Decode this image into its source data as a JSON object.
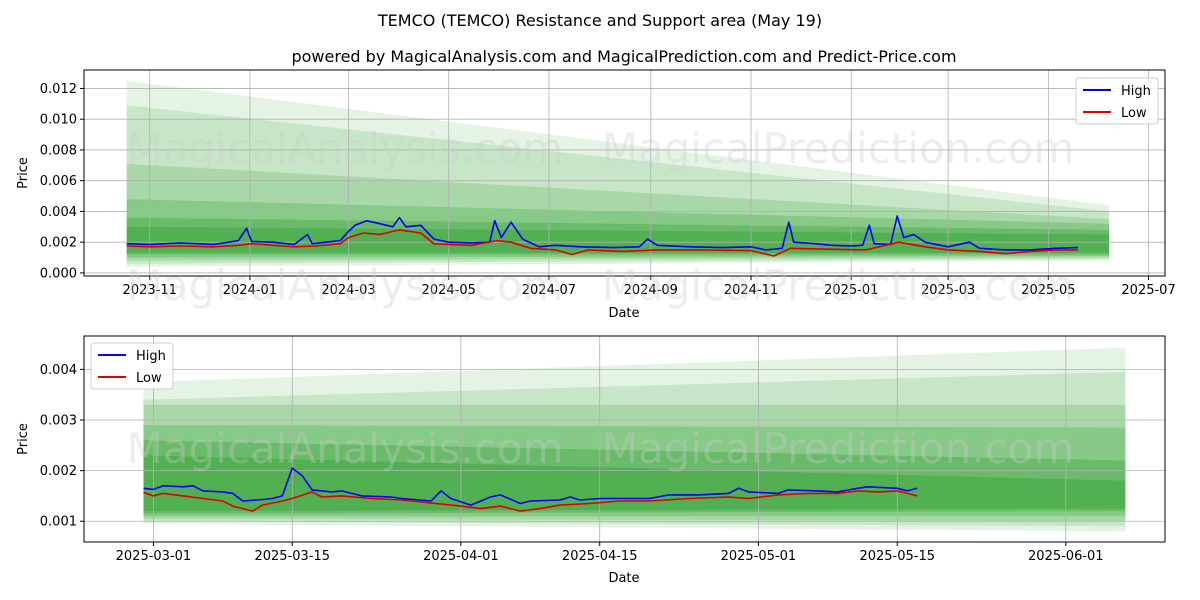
{
  "figure": {
    "title": "TEMCO (TEMCO) Resistance and Support area (May 19)",
    "subtitle": "powered by MagicalAnalysis.com and MagicalPrediction.com and Predict-Price.com",
    "watermarks": [
      "MagicalAnalysis.com",
      "MagicalPrediction.com"
    ]
  },
  "colors": {
    "high": "#0000ff",
    "low": "#e00000",
    "band": "#2ca02c",
    "grid": "#b0b0b0"
  },
  "chart_data": [
    {
      "type": "line",
      "xlabel": "Date",
      "ylabel": "Price",
      "xlim": [
        "2023-09-22",
        "2025-07-11"
      ],
      "ylim": [
        -0.0002,
        0.0132
      ],
      "x_ticks": [
        "2023-11-01",
        "2024-01-01",
        "2024-03-01",
        "2024-05-01",
        "2024-07-01",
        "2024-09-01",
        "2024-11-01",
        "2025-01-01",
        "2025-03-01",
        "2025-05-01",
        "2025-07-01"
      ],
      "x_tick_labels": [
        "2023-11",
        "2024-01",
        "2024-03",
        "2024-05",
        "2024-07",
        "2024-09",
        "2024-11",
        "2025-01",
        "2025-03",
        "2025-05",
        "2025-07"
      ],
      "y_ticks": [
        0.0,
        0.002,
        0.004,
        0.006,
        0.008,
        0.01,
        0.012
      ],
      "y_tick_labels": [
        "0.000",
        "0.002",
        "0.004",
        "0.006",
        "0.008",
        "0.010",
        "0.012"
      ],
      "grid": true,
      "legend": "top-right",
      "bands": {
        "x": [
          "2023-10-18",
          "2025-06-07"
        ],
        "layers": [
          {
            "start": [
              0.0004,
              0.0125
            ],
            "end": [
              0.0008,
              0.0044
            ],
            "opacity": 0.12
          },
          {
            "start": [
              0.0006,
              0.0109
            ],
            "end": [
              0.0009,
              0.004
            ],
            "opacity": 0.16
          },
          {
            "start": [
              0.0008,
              0.0071
            ],
            "end": [
              0.001,
              0.0035
            ],
            "opacity": 0.2
          },
          {
            "start": [
              0.001,
              0.0048
            ],
            "end": [
              0.0011,
              0.0032
            ],
            "opacity": 0.26
          },
          {
            "start": [
              0.0012,
              0.0036
            ],
            "end": [
              0.0012,
              0.0028
            ],
            "opacity": 0.32
          },
          {
            "start": [
              0.0013,
              0.003
            ],
            "end": [
              0.0013,
              0.0025
            ],
            "opacity": 0.4
          }
        ]
      },
      "series": [
        {
          "name": "High",
          "color": "#0000ff",
          "points": [
            [
              "2023-10-18",
              0.0019
            ],
            [
              "2023-11-01",
              0.00185
            ],
            [
              "2023-11-20",
              0.00195
            ],
            [
              "2023-12-10",
              0.00185
            ],
            [
              "2023-12-25",
              0.0021
            ],
            [
              "2023-12-30",
              0.0029
            ],
            [
              "2024-01-02",
              0.00205
            ],
            [
              "2024-01-15",
              0.002
            ],
            [
              "2024-01-28",
              0.00185
            ],
            [
              "2024-02-05",
              0.0025
            ],
            [
              "2024-02-08",
              0.0019
            ],
            [
              "2024-02-25",
              0.0021
            ],
            [
              "2024-03-01",
              0.0027
            ],
            [
              "2024-03-05",
              0.0031
            ],
            [
              "2024-03-12",
              0.0034
            ],
            [
              "2024-03-20",
              0.0032
            ],
            [
              "2024-03-28",
              0.003
            ],
            [
              "2024-04-01",
              0.0036
            ],
            [
              "2024-04-05",
              0.003
            ],
            [
              "2024-04-14",
              0.0031
            ],
            [
              "2024-04-22",
              0.0022
            ],
            [
              "2024-05-01",
              0.002
            ],
            [
              "2024-05-15",
              0.00195
            ],
            [
              "2024-05-26",
              0.002
            ],
            [
              "2024-05-29",
              0.0034
            ],
            [
              "2024-06-02",
              0.0023
            ],
            [
              "2024-06-08",
              0.0033
            ],
            [
              "2024-06-15",
              0.0022
            ],
            [
              "2024-06-25",
              0.0017
            ],
            [
              "2024-07-05",
              0.0018
            ],
            [
              "2024-07-20",
              0.0017
            ],
            [
              "2024-08-10",
              0.00165
            ],
            [
              "2024-08-25",
              0.0017
            ],
            [
              "2024-08-30",
              0.0022
            ],
            [
              "2024-09-05",
              0.0018
            ],
            [
              "2024-09-25",
              0.0017
            ],
            [
              "2024-10-15",
              0.00165
            ],
            [
              "2024-11-01",
              0.0017
            ],
            [
              "2024-11-10",
              0.0015
            ],
            [
              "2024-11-20",
              0.0016
            ],
            [
              "2024-11-24",
              0.0033
            ],
            [
              "2024-11-27",
              0.002
            ],
            [
              "2024-12-10",
              0.0019
            ],
            [
              "2024-12-20",
              0.0018
            ],
            [
              "2025-01-01",
              0.00175
            ],
            [
              "2025-01-08",
              0.0018
            ],
            [
              "2025-01-12",
              0.0031
            ],
            [
              "2025-01-15",
              0.0019
            ],
            [
              "2025-01-25",
              0.00185
            ],
            [
              "2025-01-29",
              0.0037
            ],
            [
              "2025-02-02",
              0.0023
            ],
            [
              "2025-02-08",
              0.0025
            ],
            [
              "2025-02-15",
              0.002
            ],
            [
              "2025-03-01",
              0.0017
            ],
            [
              "2025-03-14",
              0.002
            ],
            [
              "2025-03-20",
              0.0016
            ],
            [
              "2025-04-05",
              0.0015
            ],
            [
              "2025-04-20",
              0.0015
            ],
            [
              "2025-05-05",
              0.0016
            ],
            [
              "2025-05-19",
              0.00165
            ]
          ]
        },
        {
          "name": "Low",
          "color": "#e00000",
          "points": [
            [
              "2023-10-18",
              0.00175
            ],
            [
              "2023-11-01",
              0.0017
            ],
            [
              "2023-11-20",
              0.00175
            ],
            [
              "2023-12-10",
              0.0017
            ],
            [
              "2023-12-25",
              0.0018
            ],
            [
              "2024-01-02",
              0.0019
            ],
            [
              "2024-01-15",
              0.0018
            ],
            [
              "2024-01-28",
              0.0017
            ],
            [
              "2024-02-10",
              0.00175
            ],
            [
              "2024-02-25",
              0.0019
            ],
            [
              "2024-03-01",
              0.0023
            ],
            [
              "2024-03-10",
              0.0026
            ],
            [
              "2024-03-20",
              0.0025
            ],
            [
              "2024-04-01",
              0.0028
            ],
            [
              "2024-04-14",
              0.0026
            ],
            [
              "2024-04-22",
              0.0019
            ],
            [
              "2024-05-01",
              0.00185
            ],
            [
              "2024-05-15",
              0.0018
            ],
            [
              "2024-05-30",
              0.0021
            ],
            [
              "2024-06-08",
              0.002
            ],
            [
              "2024-06-20",
              0.0016
            ],
            [
              "2024-07-05",
              0.0015
            ],
            [
              "2024-07-15",
              0.0012
            ],
            [
              "2024-07-25",
              0.0015
            ],
            [
              "2024-08-15",
              0.0014
            ],
            [
              "2024-09-05",
              0.0015
            ],
            [
              "2024-10-01",
              0.0015
            ],
            [
              "2024-11-01",
              0.00145
            ],
            [
              "2024-11-15",
              0.0011
            ],
            [
              "2024-11-25",
              0.0016
            ],
            [
              "2024-12-15",
              0.00155
            ],
            [
              "2025-01-10",
              0.0015
            ],
            [
              "2025-01-30",
              0.002
            ],
            [
              "2025-02-15",
              0.0017
            ],
            [
              "2025-03-01",
              0.0015
            ],
            [
              "2025-03-20",
              0.0014
            ],
            [
              "2025-04-05",
              0.00125
            ],
            [
              "2025-04-20",
              0.0014
            ],
            [
              "2025-05-05",
              0.0015
            ],
            [
              "2025-05-19",
              0.0015
            ]
          ]
        }
      ]
    },
    {
      "type": "line",
      "xlabel": "Date",
      "ylabel": "Price",
      "xlim": [
        "2025-02-22",
        "2025-06-11"
      ],
      "ylim": [
        0.00059,
        0.00466
      ],
      "x_ticks": [
        "2025-03-01",
        "2025-03-15",
        "2025-04-01",
        "2025-04-15",
        "2025-05-01",
        "2025-05-15",
        "2025-06-01"
      ],
      "x_tick_labels": [
        "2025-03-01",
        "2025-03-15",
        "2025-04-01",
        "2025-04-15",
        "2025-05-01",
        "2025-05-15",
        "2025-06-01"
      ],
      "y_ticks": [
        0.001,
        0.002,
        0.003,
        0.004
      ],
      "y_tick_labels": [
        "0.001",
        "0.002",
        "0.003",
        "0.004"
      ],
      "grid": true,
      "legend": "top-left",
      "bands": {
        "x": [
          "2025-02-28",
          "2025-06-07"
        ],
        "layers": [
          {
            "start": [
              0.00095,
              0.00375
            ],
            "end": [
              0.0008,
              0.00443
            ],
            "opacity": 0.12
          },
          {
            "start": [
              0.001,
              0.0034
            ],
            "end": [
              0.0009,
              0.00395
            ],
            "opacity": 0.16
          },
          {
            "start": [
              0.00105,
              0.0033
            ],
            "end": [
              0.001,
              0.0033
            ],
            "opacity": 0.2
          },
          {
            "start": [
              0.0011,
              0.0029
            ],
            "end": [
              0.0011,
              0.00285
            ],
            "opacity": 0.26
          },
          {
            "start": [
              0.00115,
              0.0026
            ],
            "end": [
              0.0012,
              0.0022
            ],
            "opacity": 0.32
          },
          {
            "start": [
              0.0012,
              0.0023
            ],
            "end": [
              0.00125,
              0.0018
            ],
            "opacity": 0.4
          }
        ]
      },
      "series": [
        {
          "name": "High",
          "color": "#0000ff",
          "points": [
            [
              "2025-02-28",
              0.00165
            ],
            [
              "2025-03-01",
              0.00163
            ],
            [
              "2025-03-02",
              0.0017
            ],
            [
              "2025-03-04",
              0.00168
            ],
            [
              "2025-03-05",
              0.0017
            ],
            [
              "2025-03-06",
              0.0016
            ],
            [
              "2025-03-08",
              0.00158
            ],
            [
              "2025-03-09",
              0.00155
            ],
            [
              "2025-03-10",
              0.0014
            ],
            [
              "2025-03-12",
              0.00143
            ],
            [
              "2025-03-13",
              0.00145
            ],
            [
              "2025-03-14",
              0.0015
            ],
            [
              "2025-03-15",
              0.00205
            ],
            [
              "2025-03-16",
              0.0019
            ],
            [
              "2025-03-17",
              0.00162
            ],
            [
              "2025-03-19",
              0.00158
            ],
            [
              "2025-03-20",
              0.0016
            ],
            [
              "2025-03-22",
              0.0015
            ],
            [
              "2025-03-25",
              0.00148
            ],
            [
              "2025-03-26",
              0.00145
            ],
            [
              "2025-03-29",
              0.0014
            ],
            [
              "2025-03-30",
              0.0016
            ],
            [
              "2025-03-31",
              0.00145
            ],
            [
              "2025-04-02",
              0.00132
            ],
            [
              "2025-04-04",
              0.00148
            ],
            [
              "2025-04-05",
              0.00152
            ],
            [
              "2025-04-07",
              0.00135
            ],
            [
              "2025-04-08",
              0.0014
            ],
            [
              "2025-04-11",
              0.00142
            ],
            [
              "2025-04-12",
              0.00148
            ],
            [
              "2025-04-13",
              0.00142
            ],
            [
              "2025-04-15",
              0.00145
            ],
            [
              "2025-04-18",
              0.00145
            ],
            [
              "2025-04-20",
              0.00145
            ],
            [
              "2025-04-22",
              0.00152
            ],
            [
              "2025-04-25",
              0.00152
            ],
            [
              "2025-04-28",
              0.00155
            ],
            [
              "2025-04-29",
              0.00165
            ],
            [
              "2025-04-30",
              0.00158
            ],
            [
              "2025-05-03",
              0.00155
            ],
            [
              "2025-05-04",
              0.00162
            ],
            [
              "2025-05-07",
              0.0016
            ],
            [
              "2025-05-09",
              0.00158
            ],
            [
              "2025-05-11",
              0.00165
            ],
            [
              "2025-05-12",
              0.00168
            ],
            [
              "2025-05-15",
              0.00165
            ],
            [
              "2025-05-16",
              0.0016
            ],
            [
              "2025-05-17",
              0.00165
            ]
          ]
        },
        {
          "name": "Low",
          "color": "#e00000",
          "points": [
            [
              "2025-02-28",
              0.00157
            ],
            [
              "2025-03-01",
              0.0015
            ],
            [
              "2025-03-02",
              0.00155
            ],
            [
              "2025-03-04",
              0.0015
            ],
            [
              "2025-03-06",
              0.00145
            ],
            [
              "2025-03-08",
              0.0014
            ],
            [
              "2025-03-09",
              0.0013
            ],
            [
              "2025-03-11",
              0.0012
            ],
            [
              "2025-03-12",
              0.00132
            ],
            [
              "2025-03-14",
              0.0014
            ],
            [
              "2025-03-15",
              0.00145
            ],
            [
              "2025-03-17",
              0.00158
            ],
            [
              "2025-03-18",
              0.00148
            ],
            [
              "2025-03-20",
              0.0015
            ],
            [
              "2025-03-23",
              0.00145
            ],
            [
              "2025-03-26",
              0.00142
            ],
            [
              "2025-03-28",
              0.00138
            ],
            [
              "2025-04-01",
              0.0013
            ],
            [
              "2025-04-03",
              0.00125
            ],
            [
              "2025-04-05",
              0.0013
            ],
            [
              "2025-04-07",
              0.0012
            ],
            [
              "2025-04-09",
              0.00125
            ],
            [
              "2025-04-11",
              0.00132
            ],
            [
              "2025-04-14",
              0.00135
            ],
            [
              "2025-04-17",
              0.0014
            ],
            [
              "2025-04-20",
              0.0014
            ],
            [
              "2025-04-24",
              0.00145
            ],
            [
              "2025-04-28",
              0.00148
            ],
            [
              "2025-04-30",
              0.00145
            ],
            [
              "2025-05-03",
              0.00152
            ],
            [
              "2025-05-06",
              0.00155
            ],
            [
              "2025-05-09",
              0.00155
            ],
            [
              "2025-05-11",
              0.0016
            ],
            [
              "2025-05-13",
              0.00158
            ],
            [
              "2025-05-15",
              0.0016
            ],
            [
              "2025-05-17",
              0.0015
            ]
          ]
        }
      ]
    }
  ]
}
